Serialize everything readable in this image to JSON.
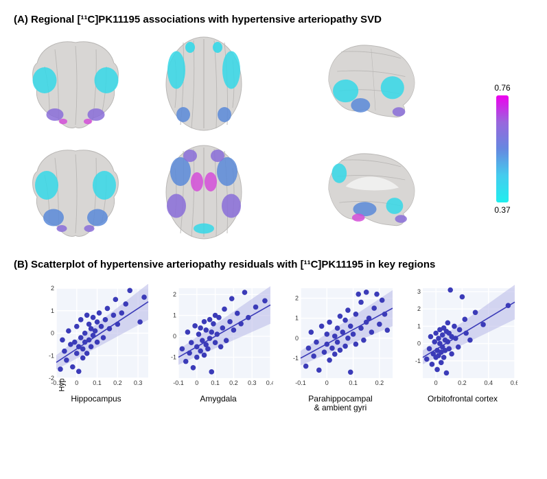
{
  "panelA": {
    "title": "(A) Regional [¹¹C]PK11195 associations with hypertensive arteriopathy SVD",
    "colorbar": {
      "max_label": "0.76",
      "min_label": "0.37",
      "gradient_stops": [
        "#ee00ee",
        "#9966dd",
        "#6688e0",
        "#44ccee",
        "#20eeee"
      ]
    },
    "brain_base_color": "#d8d6d4",
    "brain_shadow": "#b9b7b5",
    "overlay_colors": {
      "cyan": "#35d8e8",
      "blue": "#5a8ad8",
      "purple": "#8a6dd8",
      "magenta": "#d44dd8"
    }
  },
  "panelB": {
    "title": "(B) Scatterplot of  hypertensive arteriopathy residuals with [¹¹C]PK11195 in key regions",
    "y_label": "Hypertensive arteriopathy",
    "point_color": "#3b3bb8",
    "line_color": "#3b3bb8",
    "ci_color": "#b8b8e8",
    "plot_bg": "#f2f5fb",
    "point_radius": 3.8,
    "plots": [
      {
        "title": "Hippocampus",
        "xlim": [
          -0.1,
          0.35
        ],
        "ylim": [
          -2,
          2
        ],
        "xticks": [
          -0.1,
          0.0,
          0.1,
          0.2,
          0.3
        ],
        "yticks": [
          -2,
          -1,
          0,
          1,
          2
        ],
        "line": {
          "x1": -0.1,
          "y1": -1.3,
          "x2": 0.35,
          "y2": 1.4
        },
        "ci_spread": 0.8,
        "points": [
          [
            -0.08,
            -1.6
          ],
          [
            -0.07,
            -0.3
          ],
          [
            -0.06,
            -0.8
          ],
          [
            -0.05,
            -1.2
          ],
          [
            -0.04,
            0.1
          ],
          [
            -0.03,
            -0.5
          ],
          [
            -0.02,
            -1.5
          ],
          [
            -0.01,
            -0.4
          ],
          [
            0.0,
            -0.9
          ],
          [
            0.0,
            0.3
          ],
          [
            0.01,
            -0.6
          ],
          [
            0.01,
            -1.7
          ],
          [
            0.02,
            -0.2
          ],
          [
            0.02,
            0.6
          ],
          [
            0.03,
            -0.7
          ],
          [
            0.03,
            -1.1
          ],
          [
            0.04,
            0.0
          ],
          [
            0.04,
            -0.4
          ],
          [
            0.05,
            0.8
          ],
          [
            0.05,
            -0.9
          ],
          [
            0.06,
            -0.3
          ],
          [
            0.06,
            0.4
          ],
          [
            0.07,
            -0.6
          ],
          [
            0.07,
            0.2
          ],
          [
            0.08,
            -0.1
          ],
          [
            0.08,
            0.7
          ],
          [
            0.09,
            0.1
          ],
          [
            0.1,
            0.5
          ],
          [
            0.1,
            -0.4
          ],
          [
            0.11,
            0.9
          ],
          [
            0.12,
            0.3
          ],
          [
            0.13,
            -0.2
          ],
          [
            0.14,
            0.6
          ],
          [
            0.15,
            1.1
          ],
          [
            0.16,
            0.2
          ],
          [
            0.18,
            0.8
          ],
          [
            0.19,
            1.5
          ],
          [
            0.2,
            0.4
          ],
          [
            0.22,
            0.9
          ],
          [
            0.24,
            1.3
          ],
          [
            0.26,
            1.9
          ],
          [
            0.31,
            0.5
          ],
          [
            0.33,
            1.6
          ]
        ]
      },
      {
        "title": "Amygdala",
        "xlim": [
          -0.1,
          0.4
        ],
        "ylim": [
          -2,
          2.3
        ],
        "xticks": [
          -0.1,
          0.0,
          0.1,
          0.2,
          0.3,
          0.4
        ],
        "yticks": [
          -1,
          0,
          1,
          2
        ],
        "line": {
          "x1": -0.1,
          "y1": -1.0,
          "x2": 0.4,
          "y2": 1.5
        },
        "ci_spread": 0.9,
        "points": [
          [
            -0.08,
            -0.6
          ],
          [
            -0.06,
            -1.2
          ],
          [
            -0.05,
            0.2
          ],
          [
            -0.04,
            -0.8
          ],
          [
            -0.03,
            -0.3
          ],
          [
            -0.02,
            -1.5
          ],
          [
            -0.01,
            0.5
          ],
          [
            0.0,
            -0.5
          ],
          [
            0.0,
            -1.0
          ],
          [
            0.01,
            0.1
          ],
          [
            0.02,
            -0.7
          ],
          [
            0.02,
            0.4
          ],
          [
            0.03,
            -0.2
          ],
          [
            0.04,
            -0.9
          ],
          [
            0.04,
            0.7
          ],
          [
            0.05,
            -0.4
          ],
          [
            0.05,
            0.3
          ],
          [
            0.06,
            -0.6
          ],
          [
            0.07,
            0.8
          ],
          [
            0.07,
            -0.1
          ],
          [
            0.08,
            0.2
          ],
          [
            0.08,
            -1.7
          ],
          [
            0.09,
            0.6
          ],
          [
            0.1,
            -0.3
          ],
          [
            0.1,
            1.0
          ],
          [
            0.11,
            0.1
          ],
          [
            0.12,
            0.9
          ],
          [
            0.13,
            -0.5
          ],
          [
            0.14,
            0.4
          ],
          [
            0.15,
            1.3
          ],
          [
            0.16,
            -0.2
          ],
          [
            0.18,
            0.7
          ],
          [
            0.19,
            1.8
          ],
          [
            0.2,
            0.3
          ],
          [
            0.22,
            1.1
          ],
          [
            0.24,
            0.6
          ],
          [
            0.26,
            2.1
          ],
          [
            0.28,
            0.9
          ],
          [
            0.32,
            1.4
          ],
          [
            0.37,
            1.7
          ]
        ]
      },
      {
        "title": "Parahippocampal\n& ambient gyri",
        "xlim": [
          -0.1,
          0.25
        ],
        "ylim": [
          -2,
          2.5
        ],
        "xticks": [
          -0.1,
          0.0,
          0.1,
          0.2
        ],
        "yticks": [
          -1,
          0,
          1,
          2
        ],
        "line": {
          "x1": -0.1,
          "y1": -1.0,
          "x2": 0.25,
          "y2": 1.5
        },
        "ci_spread": 0.9,
        "points": [
          [
            -0.08,
            -1.4
          ],
          [
            -0.07,
            -0.5
          ],
          [
            -0.06,
            0.3
          ],
          [
            -0.05,
            -0.9
          ],
          [
            -0.04,
            -0.2
          ],
          [
            -0.03,
            -1.6
          ],
          [
            -0.02,
            0.6
          ],
          [
            -0.01,
            -0.7
          ],
          [
            0.0,
            -0.3
          ],
          [
            0.0,
            0.2
          ],
          [
            0.01,
            -1.1
          ],
          [
            0.01,
            0.8
          ],
          [
            0.02,
            -0.5
          ],
          [
            0.03,
            0.1
          ],
          [
            0.03,
            -0.8
          ],
          [
            0.04,
            0.5
          ],
          [
            0.04,
            -0.2
          ],
          [
            0.05,
            1.1
          ],
          [
            0.05,
            -0.6
          ],
          [
            0.06,
            0.3
          ],
          [
            0.07,
            -0.4
          ],
          [
            0.07,
            0.9
          ],
          [
            0.08,
            0.0
          ],
          [
            0.08,
            1.4
          ],
          [
            0.09,
            -1.7
          ],
          [
            0.09,
            0.6
          ],
          [
            0.1,
            0.2
          ],
          [
            0.11,
            -0.3
          ],
          [
            0.11,
            1.2
          ],
          [
            0.12,
            2.2
          ],
          [
            0.13,
            0.5
          ],
          [
            0.13,
            1.8
          ],
          [
            0.14,
            -0.1
          ],
          [
            0.15,
            0.8
          ],
          [
            0.15,
            2.3
          ],
          [
            0.16,
            1.0
          ],
          [
            0.17,
            0.3
          ],
          [
            0.18,
            1.5
          ],
          [
            0.19,
            2.2
          ],
          [
            0.2,
            0.7
          ],
          [
            0.21,
            1.9
          ],
          [
            0.22,
            1.2
          ],
          [
            0.23,
            0.4
          ]
        ]
      },
      {
        "title": "Orbitofrontal cortex",
        "xlim": [
          -0.1,
          0.6
        ],
        "ylim": [
          -2,
          3.2
        ],
        "xticks": [
          0.0,
          0.2,
          0.4,
          0.6
        ],
        "yticks": [
          -1,
          0,
          1,
          2,
          3
        ],
        "line": {
          "x1": -0.1,
          "y1": -0.8,
          "x2": 0.6,
          "y2": 2.4
        },
        "ci_spread": 1.0,
        "points": [
          [
            -0.07,
            -0.9
          ],
          [
            -0.05,
            -0.3
          ],
          [
            -0.04,
            0.4
          ],
          [
            -0.03,
            -1.2
          ],
          [
            -0.02,
            -0.6
          ],
          [
            -0.01,
            0.1
          ],
          [
            0.0,
            -0.8
          ],
          [
            0.0,
            0.6
          ],
          [
            0.01,
            -0.4
          ],
          [
            0.01,
            -1.5
          ],
          [
            0.02,
            0.3
          ],
          [
            0.02,
            -0.7
          ],
          [
            0.03,
            0.0
          ],
          [
            0.03,
            0.8
          ],
          [
            0.04,
            -0.5
          ],
          [
            0.04,
            -1.1
          ],
          [
            0.05,
            0.5
          ],
          [
            0.05,
            -0.2
          ],
          [
            0.06,
            0.9
          ],
          [
            0.06,
            -0.8
          ],
          [
            0.07,
            0.2
          ],
          [
            0.07,
            -0.4
          ],
          [
            0.08,
            0.7
          ],
          [
            0.08,
            -1.7
          ],
          [
            0.09,
            0.1
          ],
          [
            0.09,
            1.2
          ],
          [
            0.1,
            -0.3
          ],
          [
            0.1,
            0.6
          ],
          [
            0.11,
            3.1
          ],
          [
            0.12,
            0.4
          ],
          [
            0.12,
            -0.6
          ],
          [
            0.14,
            1.0
          ],
          [
            0.15,
            0.3
          ],
          [
            0.17,
            -0.2
          ],
          [
            0.18,
            0.8
          ],
          [
            0.2,
            2.7
          ],
          [
            0.22,
            1.4
          ],
          [
            0.23,
            0.6
          ],
          [
            0.26,
            0.2
          ],
          [
            0.3,
            1.8
          ],
          [
            0.36,
            1.1
          ],
          [
            0.55,
            2.2
          ]
        ]
      }
    ]
  }
}
